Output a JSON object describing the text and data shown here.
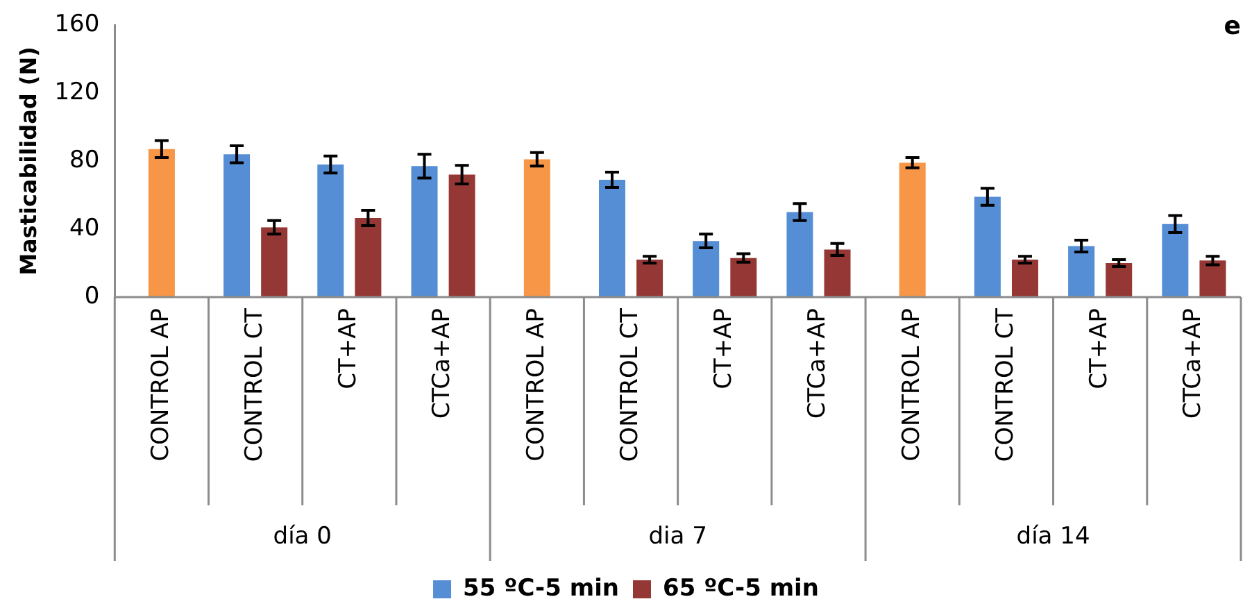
{
  "chart_data": {
    "type": "bar",
    "ylabel": "Masticabilidad (N)",
    "categories": [
      "CONTROL AP",
      "CONTROL CT",
      "CT+AP",
      "CTCa+AP",
      "CONTROL AP",
      "CONTROL CT",
      "CT+AP",
      "CTCa+AP",
      "CONTROL AP",
      "CONTROL CT",
      "CT+AP",
      "CTCa+AP"
    ],
    "series": [
      {
        "name": "55 ºC-5 min",
        "color": "#558ed5",
        "values": [
          null,
          84,
          78,
          77,
          null,
          69,
          33,
          50,
          null,
          59,
          30,
          43
        ],
        "errors": [
          null,
          5,
          5,
          7,
          null,
          4.5,
          4,
          5,
          null,
          5,
          3.5,
          5
        ]
      },
      {
        "name": "65 ºC-5 min",
        "color": "#953735",
        "values": [
          null,
          41,
          46.5,
          72,
          null,
          22,
          23,
          28,
          null,
          22,
          20,
          21.5
        ],
        "errors": [
          null,
          4,
          4.5,
          5.5,
          null,
          2,
          2.5,
          3.5,
          null,
          2,
          2,
          2.5
        ]
      },
      {
        "color": "#f79646",
        "values": [
          87,
          null,
          null,
          null,
          81,
          null,
          null,
          null,
          79,
          null,
          null,
          null
        ],
        "errors": [
          5,
          null,
          null,
          null,
          4,
          null,
          null,
          null,
          3,
          null,
          null,
          null
        ]
      }
    ],
    "ylim": [
      0,
      160
    ],
    "yticks": [
      0,
      40,
      80,
      120,
      160
    ],
    "legend": "bottom",
    "annotations": [
      "e",
      "día 0",
      "dia 7",
      "día 14"
    ]
  }
}
